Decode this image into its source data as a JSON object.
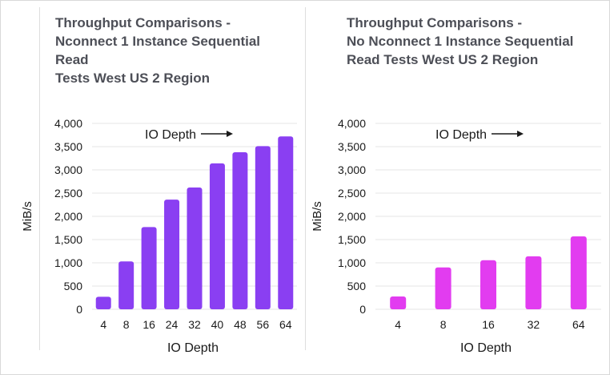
{
  "chart_data": [
    {
      "type": "bar",
      "title": "Throughput Comparisons - Nconnect 1 Instance Sequential Read Tests West US 2 Region",
      "title_lines": [
        "Throughput Comparisons -",
        "Nconnect 1 Instance Sequential Read",
        "Tests West US 2 Region"
      ],
      "xlabel": "IO Depth",
      "ylabel": "MiB/s",
      "annotation": "IO Depth",
      "categories": [
        "4",
        "8",
        "16",
        "24",
        "32",
        "40",
        "48",
        "56",
        "64"
      ],
      "values": [
        270,
        1030,
        1770,
        2360,
        2620,
        3140,
        3380,
        3510,
        3720
      ],
      "ylim": [
        0,
        4000
      ],
      "yticks": [
        "0",
        "500",
        "1,000",
        "1,500",
        "2,000",
        "2,500",
        "3,000",
        "3,500",
        "4,000"
      ],
      "color": "#8a3ff2",
      "grid": true
    },
    {
      "type": "bar",
      "title": "Throughput Comparisons - No Nconnect 1 Instance Sequential Read Tests West US 2 Region",
      "title_lines": [
        "Throughput Comparisons -",
        "No Nconnect 1 Instance Sequential",
        "Read Tests West US 2 Region"
      ],
      "xlabel": "IO Depth",
      "ylabel": "MiB/s",
      "annotation": "IO Depth",
      "categories": [
        "4",
        "8",
        "16",
        "32",
        "64"
      ],
      "values": [
        275,
        900,
        1055,
        1140,
        1570
      ],
      "ylim": [
        0,
        4000
      ],
      "yticks": [
        "0",
        "500",
        "1,000",
        "1,500",
        "2,000",
        "2,500",
        "3,000",
        "3,500",
        "4,000"
      ],
      "color": "#e23cf0",
      "grid": true
    }
  ]
}
